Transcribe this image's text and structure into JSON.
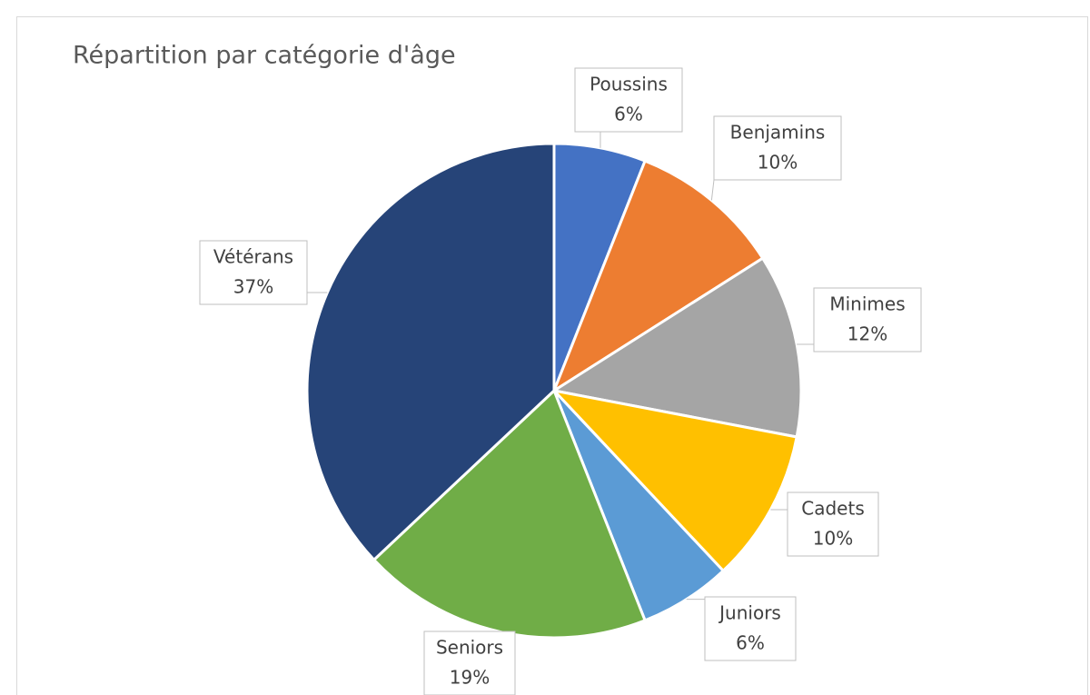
{
  "chart_data": {
    "type": "pie",
    "title": "Répartition par catégorie d'âge",
    "categories": [
      "Poussins",
      "Benjamins",
      "Minimes",
      "Cadets",
      "Juniors",
      "Seniors",
      "Vétérans"
    ],
    "values": [
      6,
      10,
      12,
      10,
      6,
      19,
      37
    ],
    "value_labels": [
      "6%",
      "10%",
      "12%",
      "10%",
      "6%",
      "19%",
      "37%"
    ],
    "colors": [
      "#4472c4",
      "#ed7d31",
      "#a5a5a5",
      "#ffc000",
      "#5b9bd5",
      "#70ad47",
      "#264478"
    ]
  }
}
